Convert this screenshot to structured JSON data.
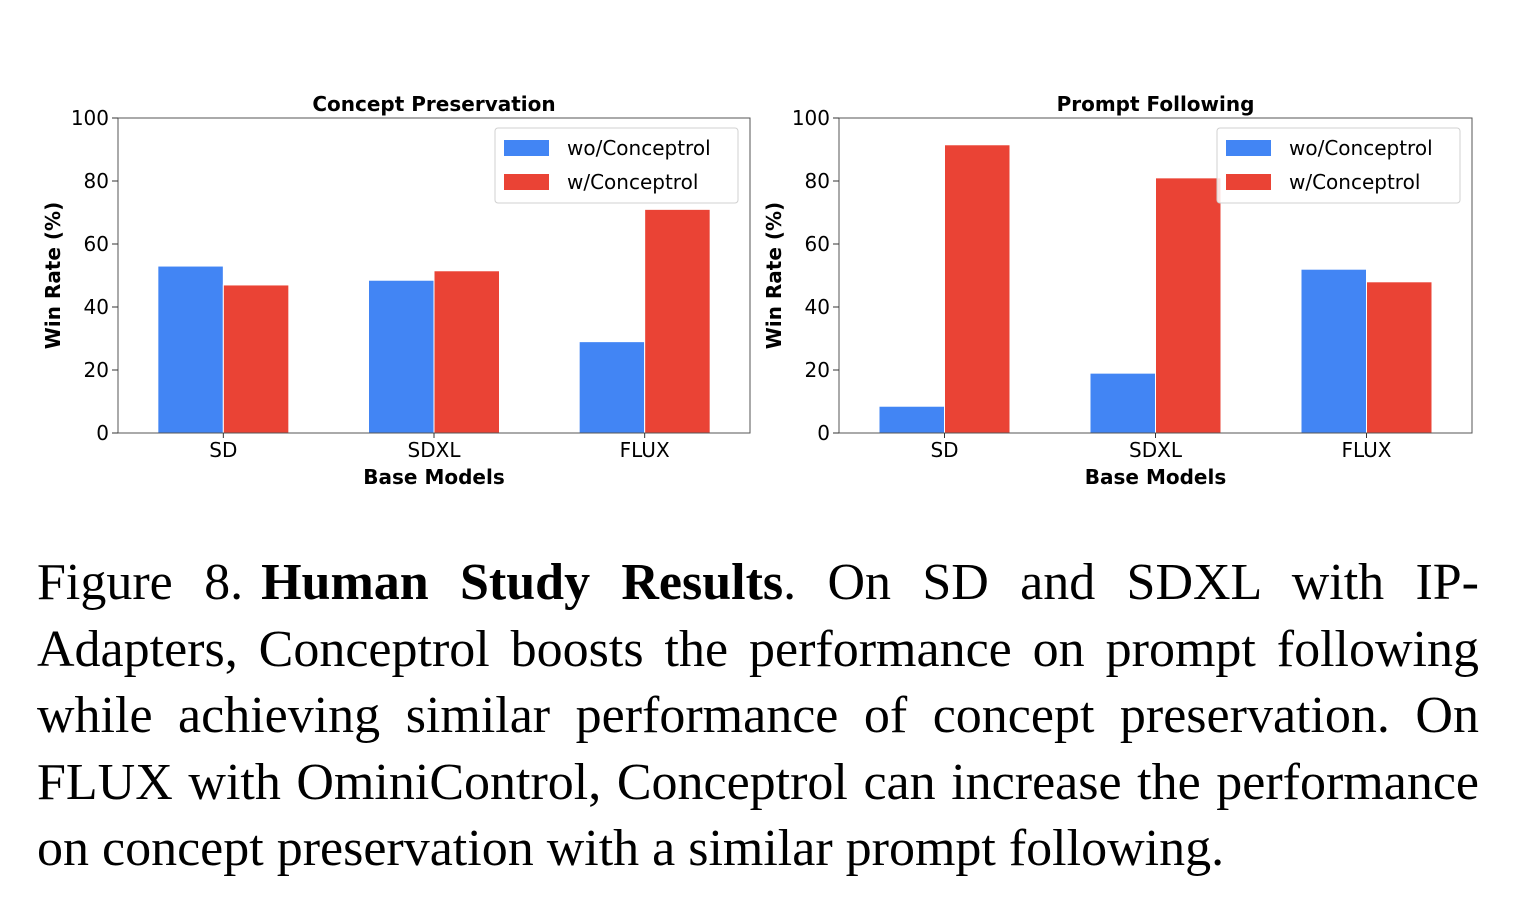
{
  "chart_data": [
    {
      "type": "bar",
      "title": "Concept Preservation",
      "xlabel": "Base Models",
      "ylabel": "Win Rate (%)",
      "ylim": [
        0,
        100
      ],
      "yticks": [
        "0",
        "20",
        "40",
        "60",
        "80",
        "100"
      ],
      "categories": [
        "SD",
        "SDXL",
        "FLUX"
      ],
      "series": [
        {
          "name": "wo/Conceptrol",
          "color": "#4285f4",
          "values": [
            53,
            48.5,
            29
          ]
        },
        {
          "name": "w/Conceptrol",
          "color": "#ea4335",
          "values": [
            47,
            51.5,
            71
          ]
        }
      ],
      "legend": "top-right",
      "grid": false
    },
    {
      "type": "bar",
      "title": "Prompt Following",
      "xlabel": "Base Models",
      "ylabel": "Win Rate (%)",
      "ylim": [
        0,
        100
      ],
      "yticks": [
        "0",
        "20",
        "40",
        "60",
        "80",
        "100"
      ],
      "categories": [
        "SD",
        "SDXL",
        "FLUX"
      ],
      "series": [
        {
          "name": "wo/Conceptrol",
          "color": "#4285f4",
          "values": [
            8.5,
            19,
            52
          ]
        },
        {
          "name": "w/Conceptrol",
          "color": "#ea4335",
          "values": [
            91.5,
            81,
            48
          ]
        }
      ],
      "legend": "top-right",
      "grid": false
    }
  ],
  "caption": {
    "label": "Figure 8.",
    "bold": "Human Study Results",
    "text": ". On SD and SDXL with IP-Adapters, Conceptrol boosts the performance on prompt following while achieving similar performance of concept preservation. On FLUX with OminiControl, Conceptrol can increase the performance on concept preservation with a similar prompt following."
  }
}
